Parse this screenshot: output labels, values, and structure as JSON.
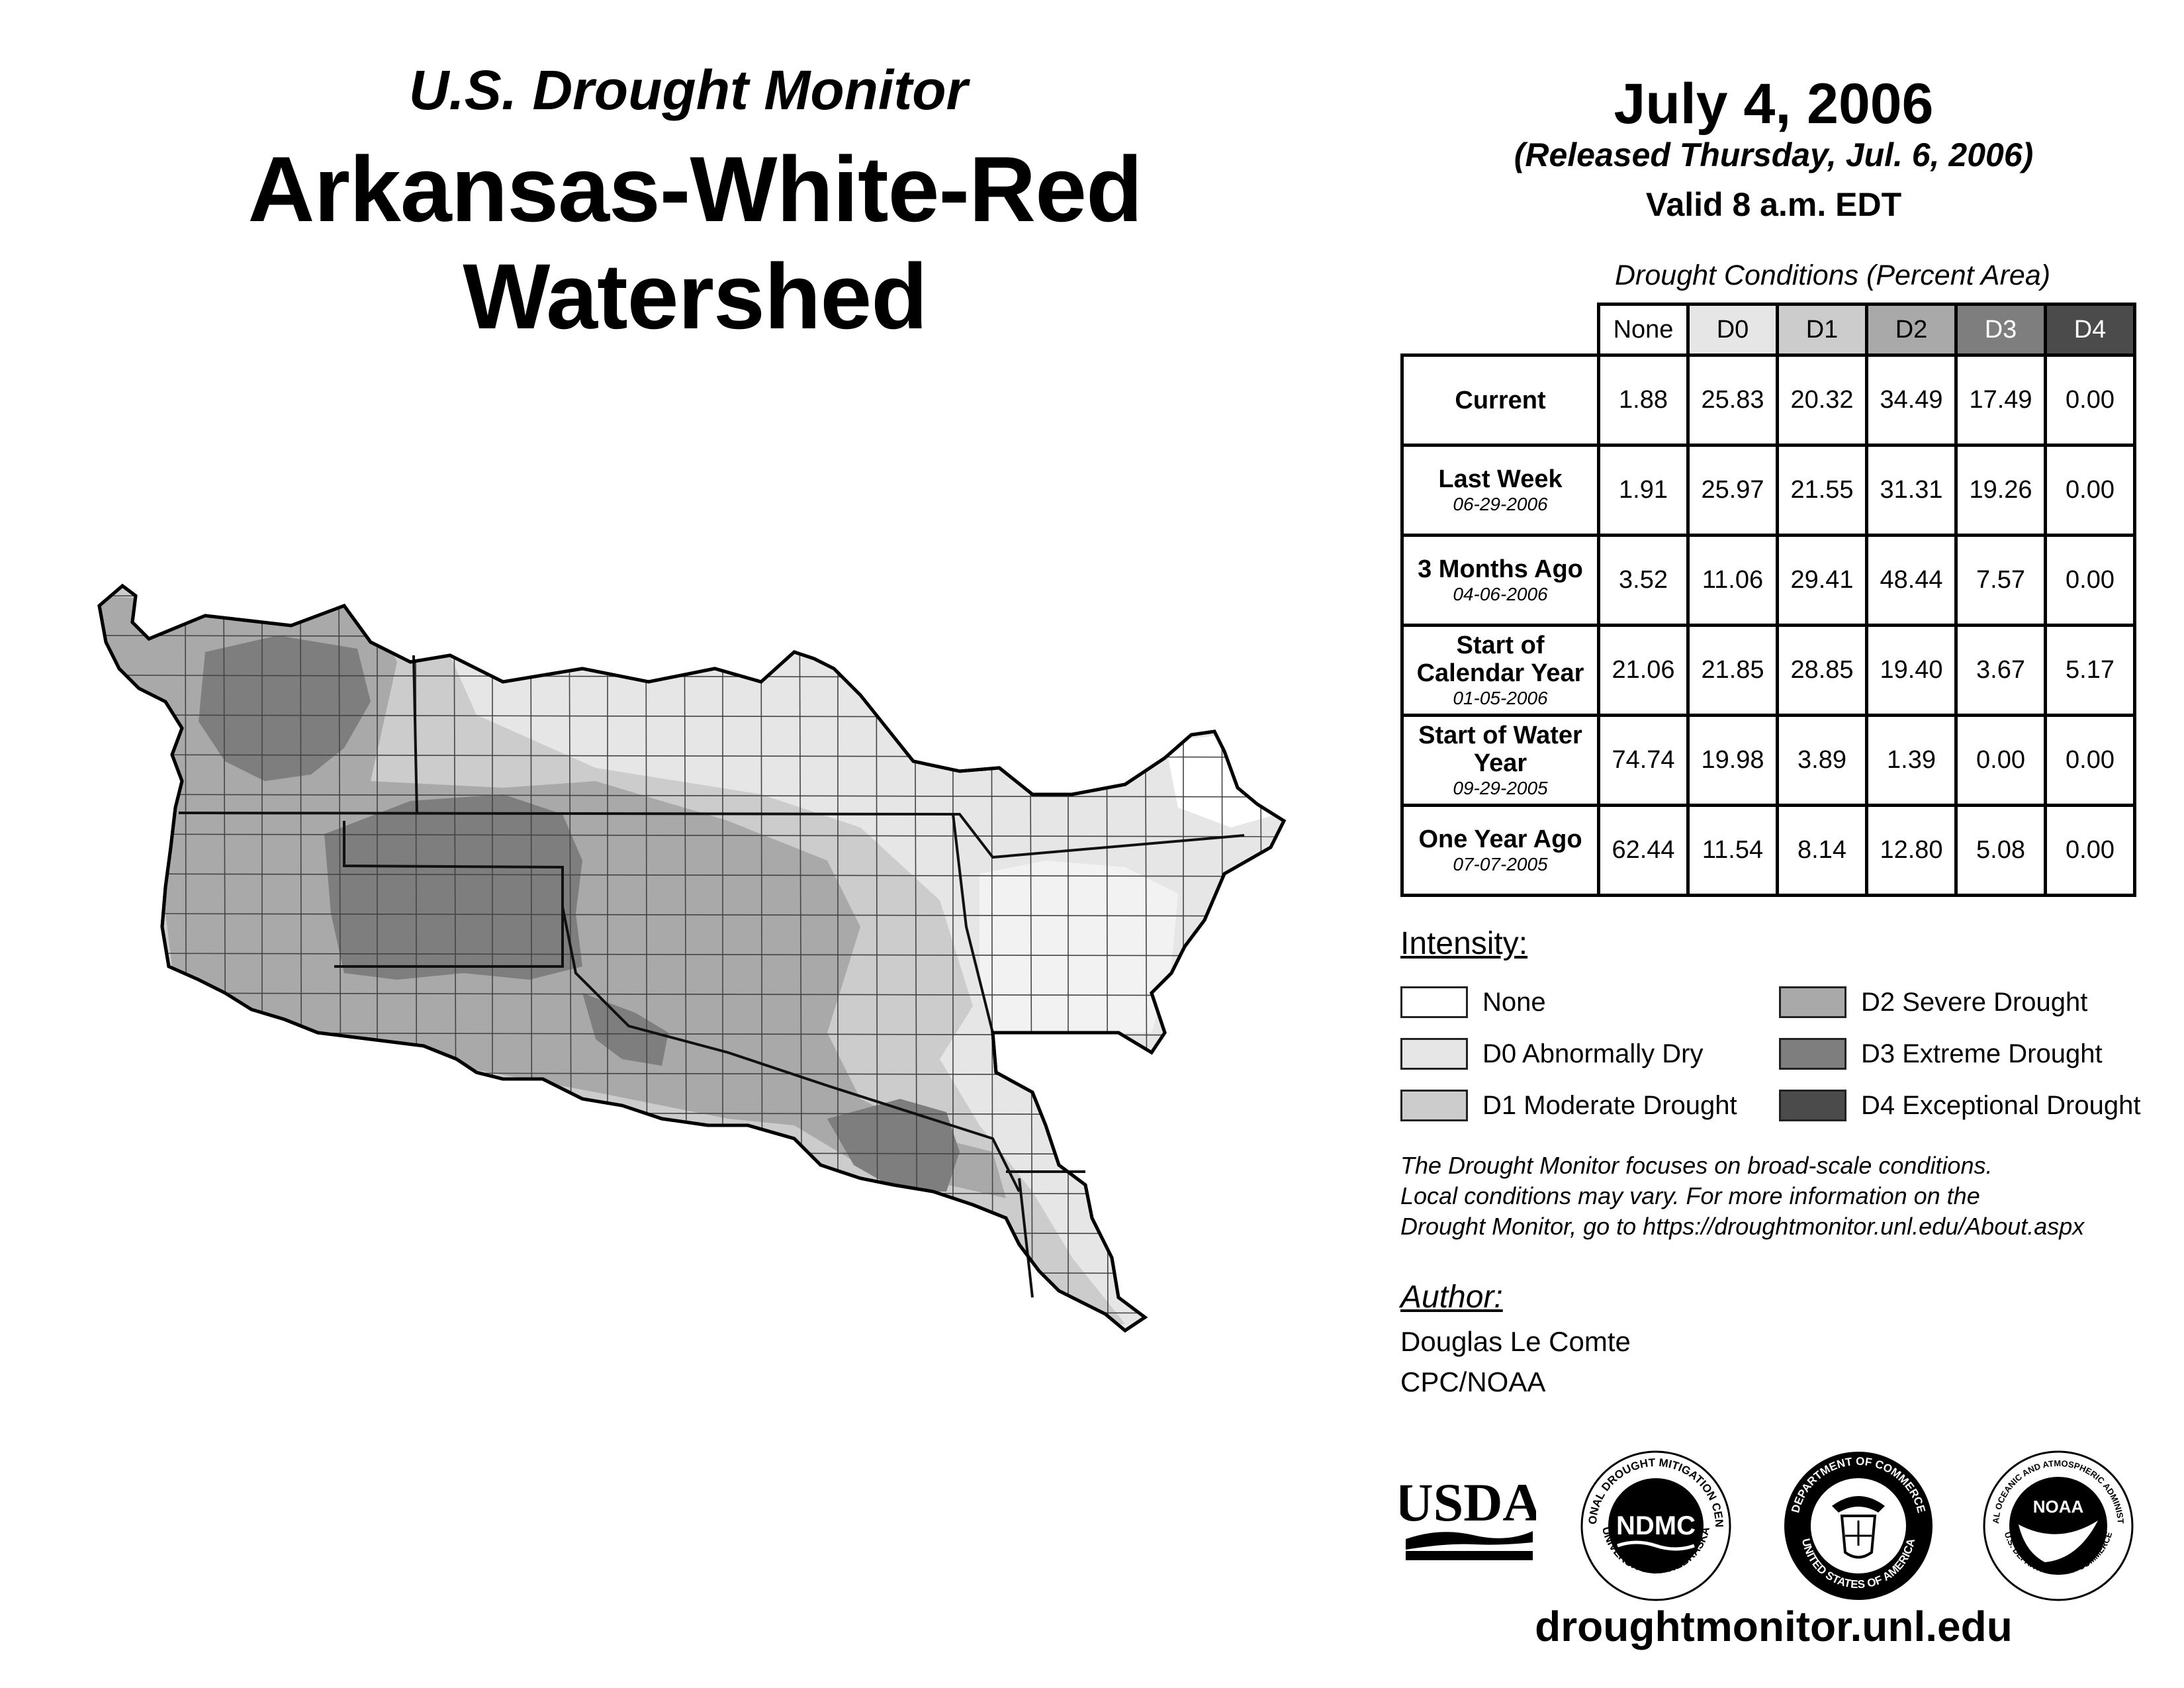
{
  "header": {
    "subtitle": "U.S. Drought Monitor",
    "title": "Arkansas-White-Red Watershed",
    "date": "July 4, 2006",
    "released": "(Released Thursday, Jul. 6, 2006)",
    "valid": "Valid 8 a.m. EDT"
  },
  "table": {
    "caption": "Drought Conditions (Percent Area)",
    "columns": [
      "None",
      "D0",
      "D1",
      "D2",
      "D3",
      "D4"
    ],
    "column_colors": [
      "#ffffff",
      "#e6e6e6",
      "#cccccc",
      "#a9a9a9",
      "#7e7e7e",
      "#4b4b4b"
    ],
    "rows": [
      {
        "label": "Current",
        "date": "",
        "values": [
          "1.88",
          "25.83",
          "20.32",
          "34.49",
          "17.49",
          "0.00"
        ]
      },
      {
        "label": "Last Week",
        "date": "06-29-2006",
        "values": [
          "1.91",
          "25.97",
          "21.55",
          "31.31",
          "19.26",
          "0.00"
        ]
      },
      {
        "label": "3 Months Ago",
        "date": "04-06-2006",
        "values": [
          "3.52",
          "11.06",
          "29.41",
          "48.44",
          "7.57",
          "0.00"
        ]
      },
      {
        "label": "Start of Calendar Year",
        "date": "01-05-2006",
        "values": [
          "21.06",
          "21.85",
          "28.85",
          "19.40",
          "3.67",
          "5.17"
        ]
      },
      {
        "label": "Start of Water Year",
        "date": "09-29-2005",
        "values": [
          "74.74",
          "19.98",
          "3.89",
          "1.39",
          "0.00",
          "0.00"
        ]
      },
      {
        "label": "One Year Ago",
        "date": "07-07-2005",
        "values": [
          "62.44",
          "11.54",
          "8.14",
          "12.80",
          "5.08",
          "0.00"
        ]
      }
    ]
  },
  "legend": {
    "title": "Intensity:",
    "items": [
      {
        "label": "None",
        "color": "#ffffff"
      },
      {
        "label": "D0 Abnormally Dry",
        "color": "#e6e6e6"
      },
      {
        "label": "D1 Moderate Drought",
        "color": "#cccccc"
      },
      {
        "label": "D2 Severe Drought",
        "color": "#a9a9a9"
      },
      {
        "label": "D3 Extreme Drought",
        "color": "#7e7e7e"
      },
      {
        "label": "D4 Exceptional Drought",
        "color": "#4b4b4b"
      }
    ]
  },
  "note": {
    "line1": "The Drought Monitor focuses on broad-scale conditions.",
    "line2": "Local conditions may vary. For more information on the",
    "line3": "Drought Monitor, go to https://droughtmonitor.unl.edu/About.aspx"
  },
  "author": {
    "heading": "Author:",
    "name": "Douglas Le Comte",
    "org": "CPC/NOAA"
  },
  "logos": {
    "usda": "USDA",
    "ndmc": "NDMC",
    "ndmc_ring_top": "NATIONAL DROUGHT MITIGATION CENTER",
    "ndmc_ring_bottom": "UNIVERSITY OF NEBRASKA",
    "doc_ring_top": "DEPARTMENT OF COMMERCE",
    "doc_ring_bottom": "UNITED STATES OF AMERICA",
    "noaa": "NOAA",
    "noaa_ring_top": "NATIONAL OCEANIC AND ATMOSPHERIC ADMINISTRATION",
    "noaa_ring_bottom": "U.S. DEPARTMENT OF COMMERCE"
  },
  "footer_url": "droughtmonitor.unl.edu",
  "map": {
    "colors": {
      "d0": "#e6e6e6",
      "d1": "#cccccc",
      "d2": "#a9a9a9",
      "d3": "#7e7e7e",
      "none": "#ffffff"
    }
  }
}
